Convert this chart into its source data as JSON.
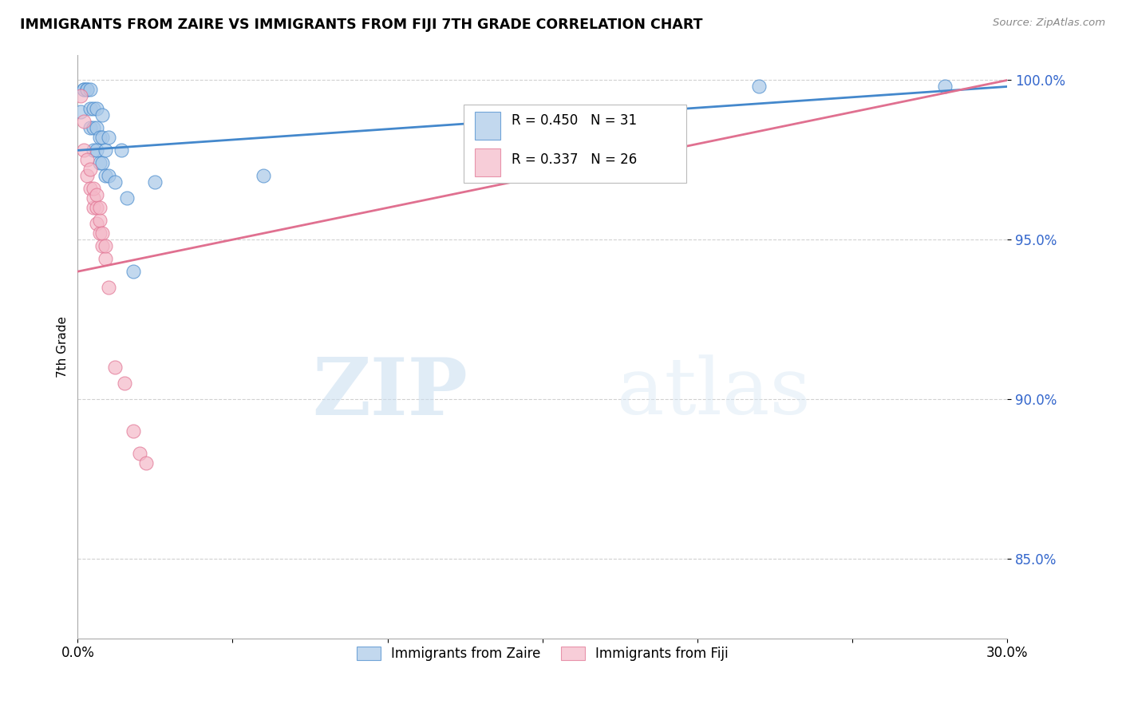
{
  "title": "IMMIGRANTS FROM ZAIRE VS IMMIGRANTS FROM FIJI 7TH GRADE CORRELATION CHART",
  "source": "Source: ZipAtlas.com",
  "xlabel_bottom": "Immigrants from Zaire",
  "xlabel_bottom2": "Immigrants from Fiji",
  "ylabel": "7th Grade",
  "xmin": 0.0,
  "xmax": 0.3,
  "ymin": 0.825,
  "ymax": 1.008,
  "yticks": [
    0.85,
    0.9,
    0.95,
    1.0
  ],
  "ytick_labels": [
    "85.0%",
    "90.0%",
    "95.0%",
    "100.0%"
  ],
  "xticks": [
    0.0,
    0.05,
    0.1,
    0.15,
    0.2,
    0.25,
    0.3
  ],
  "xtick_labels": [
    "0.0%",
    "",
    "",
    "",
    "",
    "",
    "30.0%"
  ],
  "blue_R": 0.45,
  "blue_N": 31,
  "pink_R": 0.337,
  "pink_N": 26,
  "blue_color": "#a8c8e8",
  "pink_color": "#f4b8c8",
  "blue_line_color": "#4488cc",
  "pink_line_color": "#e07090",
  "watermark_zip": "ZIP",
  "watermark_atlas": "atlas",
  "blue_scatter_x": [
    0.001,
    0.002,
    0.002,
    0.003,
    0.003,
    0.004,
    0.004,
    0.004,
    0.005,
    0.005,
    0.005,
    0.006,
    0.006,
    0.006,
    0.007,
    0.007,
    0.008,
    0.008,
    0.008,
    0.009,
    0.009,
    0.01,
    0.01,
    0.012,
    0.014,
    0.016,
    0.018,
    0.025,
    0.06,
    0.22,
    0.28
  ],
  "blue_scatter_y": [
    0.99,
    0.997,
    0.997,
    0.997,
    0.997,
    0.985,
    0.991,
    0.997,
    0.978,
    0.985,
    0.991,
    0.978,
    0.985,
    0.991,
    0.974,
    0.982,
    0.974,
    0.982,
    0.989,
    0.97,
    0.978,
    0.97,
    0.982,
    0.968,
    0.978,
    0.963,
    0.94,
    0.968,
    0.97,
    0.998,
    0.998
  ],
  "pink_scatter_x": [
    0.001,
    0.002,
    0.002,
    0.003,
    0.003,
    0.004,
    0.004,
    0.005,
    0.005,
    0.005,
    0.006,
    0.006,
    0.006,
    0.007,
    0.007,
    0.007,
    0.008,
    0.008,
    0.009,
    0.009,
    0.01,
    0.012,
    0.015,
    0.018,
    0.02,
    0.022
  ],
  "pink_scatter_y": [
    0.995,
    0.987,
    0.978,
    0.975,
    0.97,
    0.966,
    0.972,
    0.96,
    0.963,
    0.966,
    0.955,
    0.96,
    0.964,
    0.952,
    0.956,
    0.96,
    0.948,
    0.952,
    0.944,
    0.948,
    0.935,
    0.91,
    0.905,
    0.89,
    0.883,
    0.88
  ],
  "blue_trend_x0": 0.0,
  "blue_trend_x1": 0.3,
  "blue_trend_y0": 0.978,
  "blue_trend_y1": 0.998,
  "pink_trend_x0": 0.0,
  "pink_trend_x1": 0.3,
  "pink_trend_y0": 0.94,
  "pink_trend_y1": 1.0
}
